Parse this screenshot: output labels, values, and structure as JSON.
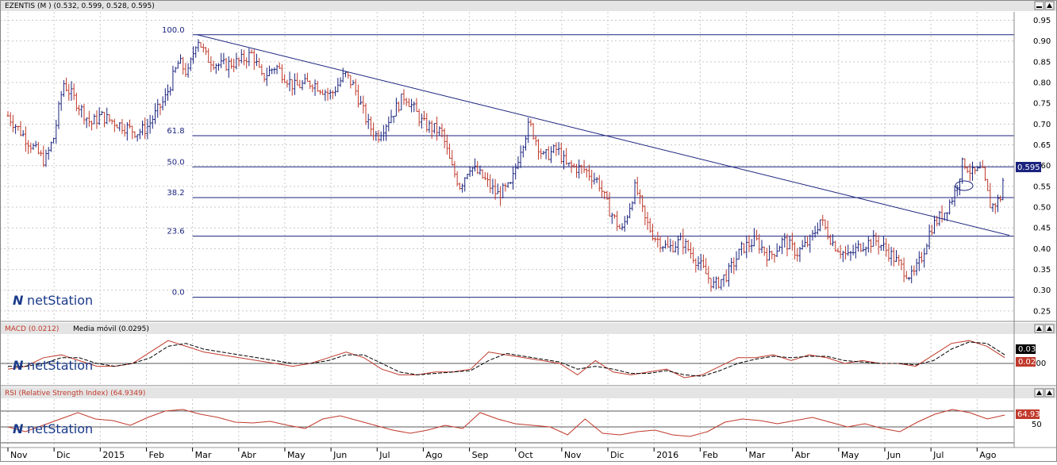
{
  "colors": {
    "bar_up": "#1a237e",
    "bar_down": "#c0392b",
    "fib": "#1a237e",
    "grid": "#c8c8c8",
    "macd": "#c0392b",
    "signal": "#000000",
    "rsi": "#c0392b",
    "price_badge": "#1a237e",
    "macd_badge_1": "#000000",
    "macd_badge_2": "#c0392b",
    "rsi_badge": "#c0392b"
  },
  "panels": {
    "price": {
      "title": "EZENTIS (M ) (0.532, 0.599, 0.528, 0.595)",
      "last_value": "0.595",
      "logo": "netStation"
    },
    "macd": {
      "title": "MACD (0.0212)",
      "signal_title": "Media móvil (0.0295)",
      "tick_label": "0.00",
      "badge1": "0.03",
      "badge2": "0.02",
      "logo": "netStation"
    },
    "rsi": {
      "title": "RSI (Relative Strength Index) (64.9349)",
      "tick_label": "50",
      "badge": "64.93",
      "logo": "netStation"
    }
  },
  "buttons": {
    "minimize": "▬",
    "maximize": "▲",
    "close": "▲"
  },
  "chart_data": [
    {
      "type": "line",
      "title": "EZENTIS (M ) (0.532, 0.599, 0.528, 0.595)",
      "y_ticks": [
        "0.95",
        "0.90",
        "0.85",
        "0.80",
        "0.75",
        "0.70",
        "0.65",
        "0.60",
        "0.55",
        "0.50",
        "0.45",
        "0.40",
        "0.35",
        "0.30",
        "0.25"
      ],
      "y_tick_values": [
        0.95,
        0.9,
        0.85,
        0.8,
        0.75,
        0.7,
        0.65,
        0.6,
        0.55,
        0.5,
        0.45,
        0.4,
        0.35,
        0.3,
        0.25
      ],
      "ylim": [
        0.225,
        0.97
      ],
      "x_tick_labels": [
        "Nov",
        "Dic",
        "2015",
        "Feb",
        "Mar",
        "Abr",
        "May",
        "Jun",
        "Jul",
        "Ago",
        "Sep",
        "Oct",
        "Nov",
        "Dic",
        "2016",
        "Feb",
        "Mar",
        "Abr",
        "May",
        "Jun",
        "Jul",
        "Ago"
      ],
      "fibonacci": [
        {
          "label": "100.0",
          "value": 0.915
        },
        {
          "label": "61.8",
          "value": 0.672
        },
        {
          "label": "50.0",
          "value": 0.597
        },
        {
          "label": "38.2",
          "value": 0.523
        },
        {
          "label": "23.6",
          "value": 0.43
        },
        {
          "label": "0.0",
          "value": 0.283
        }
      ],
      "trendline": {
        "start": {
          "month": 4.1,
          "value": 0.915
        },
        "end": {
          "month": 21.7,
          "value": 0.432
        }
      },
      "price_path": [
        [
          0.0,
          0.72
        ],
        [
          0.5,
          0.65
        ],
        [
          0.8,
          0.61
        ],
        [
          1.0,
          0.67
        ],
        [
          1.2,
          0.8
        ],
        [
          1.5,
          0.75
        ],
        [
          1.8,
          0.7
        ],
        [
          2.0,
          0.72
        ],
        [
          2.4,
          0.7
        ],
        [
          2.8,
          0.68
        ],
        [
          3.0,
          0.69
        ],
        [
          3.4,
          0.76
        ],
        [
          3.7,
          0.85
        ],
        [
          3.9,
          0.82
        ],
        [
          4.1,
          0.91
        ],
        [
          4.3,
          0.86
        ],
        [
          4.6,
          0.84
        ],
        [
          5.0,
          0.85
        ],
        [
          5.3,
          0.87
        ],
        [
          5.5,
          0.81
        ],
        [
          5.8,
          0.84
        ],
        [
          6.2,
          0.79
        ],
        [
          6.6,
          0.8
        ],
        [
          7.0,
          0.77
        ],
        [
          7.3,
          0.82
        ],
        [
          7.5,
          0.79
        ],
        [
          7.8,
          0.7
        ],
        [
          8.0,
          0.67
        ],
        [
          8.3,
          0.72
        ],
        [
          8.6,
          0.77
        ],
        [
          9.0,
          0.7
        ],
        [
          9.4,
          0.68
        ],
        [
          9.6,
          0.6
        ],
        [
          9.8,
          0.55
        ],
        [
          10.0,
          0.6
        ],
        [
          10.3,
          0.57
        ],
        [
          10.6,
          0.53
        ],
        [
          10.9,
          0.55
        ],
        [
          11.1,
          0.64
        ],
        [
          11.3,
          0.7
        ],
        [
          11.6,
          0.62
        ],
        [
          11.9,
          0.64
        ],
        [
          12.1,
          0.6
        ],
        [
          12.5,
          0.59
        ],
        [
          12.8,
          0.56
        ],
        [
          13.0,
          0.5
        ],
        [
          13.3,
          0.44
        ],
        [
          13.6,
          0.55
        ],
        [
          13.8,
          0.47
        ],
        [
          14.0,
          0.43
        ],
        [
          14.3,
          0.4
        ],
        [
          14.6,
          0.42
        ],
        [
          15.0,
          0.36
        ],
        [
          15.3,
          0.31
        ],
        [
          15.6,
          0.34
        ],
        [
          15.9,
          0.4
        ],
        [
          16.2,
          0.42
        ],
        [
          16.5,
          0.38
        ],
        [
          16.8,
          0.42
        ],
        [
          17.1,
          0.39
        ],
        [
          17.4,
          0.42
        ],
        [
          17.6,
          0.47
        ],
        [
          17.9,
          0.41
        ],
        [
          18.2,
          0.38
        ],
        [
          18.5,
          0.41
        ],
        [
          18.8,
          0.42
        ],
        [
          19.1,
          0.39
        ],
        [
          19.4,
          0.35
        ],
        [
          19.6,
          0.33
        ],
        [
          19.8,
          0.38
        ],
        [
          20.0,
          0.45
        ],
        [
          20.3,
          0.49
        ],
        [
          20.5,
          0.53
        ],
        [
          20.7,
          0.61
        ],
        [
          20.9,
          0.58
        ],
        [
          21.1,
          0.59
        ],
        [
          21.3,
          0.5
        ],
        [
          21.5,
          0.52
        ],
        [
          21.6,
          0.595
        ]
      ]
    },
    {
      "type": "line",
      "title": "MACD (0.0212)",
      "series": [
        {
          "name": "MACD (0.0212)",
          "values": [
            -0.02,
            -0.01,
            0.02,
            0.03,
            0.01,
            -0.01,
            -0.01,
            0.0,
            0.04,
            0.08,
            0.06,
            0.04,
            0.03,
            0.02,
            0.01,
            0.0,
            -0.01,
            0.0,
            0.02,
            0.04,
            0.02,
            -0.02,
            -0.04,
            -0.04,
            -0.03,
            -0.03,
            -0.02,
            0.04,
            0.03,
            0.02,
            0.01,
            0.0,
            -0.04,
            0.01,
            -0.03,
            -0.04,
            -0.03,
            -0.02,
            -0.05,
            -0.04,
            -0.01,
            0.02,
            0.02,
            0.03,
            0.01,
            0.03,
            0.02,
            0.0,
            0.01,
            0.0,
            0.0,
            -0.01,
            0.03,
            0.07,
            0.08,
            0.06,
            0.02
          ]
        },
        {
          "name": "Media móvil (0.0295)",
          "values": [
            -0.01,
            -0.01,
            0.0,
            0.02,
            0.02,
            0.0,
            -0.01,
            0.0,
            0.02,
            0.06,
            0.07,
            0.05,
            0.04,
            0.03,
            0.02,
            0.01,
            0.0,
            0.0,
            0.01,
            0.03,
            0.03,
            0.0,
            -0.03,
            -0.04,
            -0.035,
            -0.03,
            -0.025,
            0.01,
            0.035,
            0.025,
            0.015,
            0.005,
            -0.02,
            -0.01,
            -0.02,
            -0.035,
            -0.035,
            -0.025,
            -0.04,
            -0.045,
            -0.025,
            0.0,
            0.015,
            0.025,
            0.02,
            0.025,
            0.025,
            0.01,
            0.005,
            0.0,
            0.0,
            -0.005,
            0.01,
            0.05,
            0.075,
            0.07,
            0.03
          ]
        }
      ],
      "ylim": [
        -0.075,
        0.1
      ],
      "y_ticks": [
        "0.00"
      ]
    },
    {
      "type": "line",
      "title": "RSI (Relative Strength Index) (64.9349)",
      "series": [
        {
          "name": "RSI (Relative Strength Index) (64.9349)",
          "values": [
            50,
            44,
            52,
            60,
            68,
            60,
            58,
            52,
            62,
            70,
            72,
            66,
            62,
            56,
            55,
            57,
            52,
            48,
            60,
            64,
            58,
            52,
            46,
            42,
            46,
            52,
            48,
            68,
            60,
            54,
            52,
            50,
            40,
            60,
            42,
            40,
            44,
            46,
            40,
            38,
            44,
            56,
            60,
            58,
            54,
            58,
            62,
            56,
            50,
            54,
            48,
            44,
            56,
            66,
            72,
            68,
            60,
            65
          ]
        }
      ],
      "ylim": [
        25,
        85
      ],
      "y_ticks": [
        "50"
      ]
    }
  ]
}
